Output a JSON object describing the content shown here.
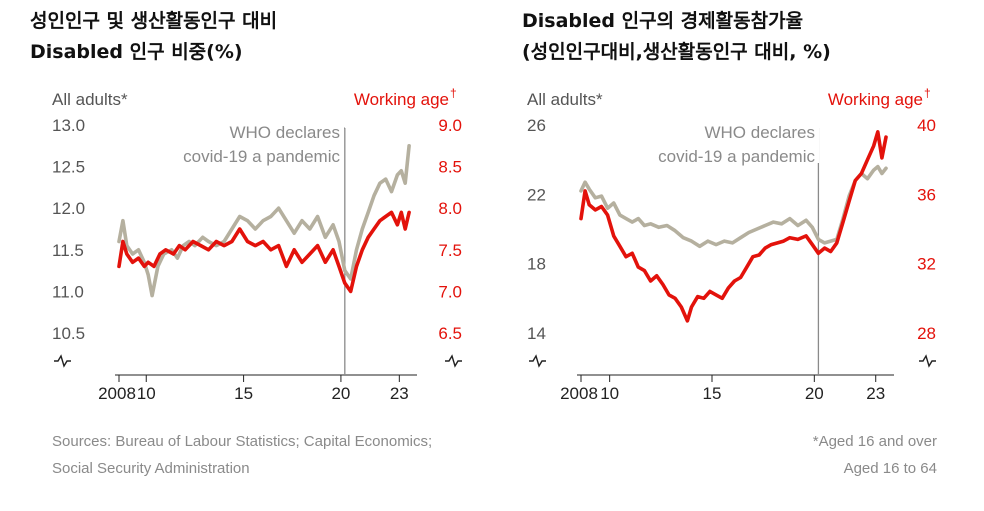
{
  "colors": {
    "all_adults": "#b5b09f",
    "working_age": "#e3120b",
    "axis_text_left": "#555555",
    "axis_text_right": "#e3120b",
    "annotation": "#8a8a8a"
  },
  "charts": [
    {
      "title_lines": [
        "성인인구 및 생산활동인구 대비",
        "Disabled 인구 비중(%)"
      ],
      "left_axis_label": "All adults*",
      "right_axis_label": "Working age",
      "right_axis_marker": "†",
      "annotation_lines": [
        "WHO declares",
        "covid-19 a pandemic"
      ]
    },
    {
      "title_lines": [
        "Disabled 인구의 경제활동참가율",
        "(성인인구대비,생산활동인구 대비, %)"
      ],
      "left_axis_label": "All adults*",
      "right_axis_label": "Working age",
      "right_axis_marker": "†",
      "annotation_lines": [
        "WHO declares",
        "covid-19 a pandemic"
      ]
    }
  ],
  "footer": {
    "sources": [
      "Sources: Bureau of Labour Statistics; Capital Economics;",
      "Social Security Administration"
    ],
    "notes": [
      "*Aged 16 and over",
      "Aged 16 to 64"
    ]
  },
  "chart_data": [
    {
      "type": "line",
      "title": "성인인구 및 생산활동인구 대비 Disabled 인구 비중(%)",
      "x_range": [
        2008.6,
        2023.6
      ],
      "x_ticks": [
        {
          "value": 2008.6,
          "label": "2008"
        },
        {
          "value": 2010,
          "label": "10"
        },
        {
          "value": 2015,
          "label": "15"
        },
        {
          "value": 2020,
          "label": "20"
        },
        {
          "value": 2023,
          "label": "23"
        }
      ],
      "y_left": {
        "label": "All adults*",
        "range": [
          10.5,
          13.0
        ],
        "ticks": [
          "10.5",
          "11.0",
          "11.5",
          "12.0",
          "12.5",
          "13.0"
        ]
      },
      "y_right": {
        "label": "Working age†",
        "range": [
          6.5,
          9.0
        ],
        "ticks": [
          "6.5",
          "7.0",
          "7.5",
          "8.0",
          "8.5",
          "9.0"
        ]
      },
      "event": {
        "x": 2020.2,
        "label": "WHO declares covid-19 a pandemic"
      },
      "series": [
        {
          "name": "All adults*",
          "axis": "left",
          "points": [
            [
              2008.6,
              11.6
            ],
            [
              2008.8,
              11.85
            ],
            [
              2009.0,
              11.55
            ],
            [
              2009.3,
              11.45
            ],
            [
              2009.6,
              11.5
            ],
            [
              2009.9,
              11.35
            ],
            [
              2010.1,
              11.2
            ],
            [
              2010.3,
              10.95
            ],
            [
              2010.6,
              11.3
            ],
            [
              2010.9,
              11.45
            ],
            [
              2011.3,
              11.5
            ],
            [
              2011.6,
              11.4
            ],
            [
              2011.9,
              11.55
            ],
            [
              2012.2,
              11.6
            ],
            [
              2012.5,
              11.55
            ],
            [
              2012.9,
              11.65
            ],
            [
              2013.2,
              11.6
            ],
            [
              2013.6,
              11.55
            ],
            [
              2014.0,
              11.6
            ],
            [
              2014.4,
              11.75
            ],
            [
              2014.8,
              11.9
            ],
            [
              2015.2,
              11.85
            ],
            [
              2015.6,
              11.75
            ],
            [
              2016.0,
              11.85
            ],
            [
              2016.4,
              11.9
            ],
            [
              2016.8,
              12.0
            ],
            [
              2017.2,
              11.85
            ],
            [
              2017.6,
              11.7
            ],
            [
              2018.0,
              11.85
            ],
            [
              2018.4,
              11.75
            ],
            [
              2018.8,
              11.9
            ],
            [
              2019.2,
              11.65
            ],
            [
              2019.6,
              11.8
            ],
            [
              2019.9,
              11.6
            ],
            [
              2020.2,
              11.25
            ],
            [
              2020.5,
              11.15
            ],
            [
              2020.8,
              11.5
            ],
            [
              2021.1,
              11.75
            ],
            [
              2021.4,
              11.95
            ],
            [
              2021.7,
              12.15
            ],
            [
              2022.0,
              12.3
            ],
            [
              2022.3,
              12.35
            ],
            [
              2022.6,
              12.2
            ],
            [
              2022.9,
              12.4
            ],
            [
              2023.1,
              12.45
            ],
            [
              2023.3,
              12.3
            ],
            [
              2023.5,
              12.75
            ]
          ]
        },
        {
          "name": "Working age†",
          "axis": "right",
          "points": [
            [
              2008.6,
              7.3
            ],
            [
              2008.8,
              7.6
            ],
            [
              2009.0,
              7.45
            ],
            [
              2009.3,
              7.35
            ],
            [
              2009.6,
              7.4
            ],
            [
              2009.9,
              7.3
            ],
            [
              2010.1,
              7.35
            ],
            [
              2010.4,
              7.3
            ],
            [
              2010.7,
              7.45
            ],
            [
              2011.0,
              7.5
            ],
            [
              2011.4,
              7.45
            ],
            [
              2011.7,
              7.55
            ],
            [
              2012.0,
              7.5
            ],
            [
              2012.4,
              7.6
            ],
            [
              2012.8,
              7.55
            ],
            [
              2013.2,
              7.5
            ],
            [
              2013.6,
              7.6
            ],
            [
              2014.0,
              7.55
            ],
            [
              2014.4,
              7.6
            ],
            [
              2014.8,
              7.75
            ],
            [
              2015.2,
              7.6
            ],
            [
              2015.6,
              7.55
            ],
            [
              2016.0,
              7.6
            ],
            [
              2016.4,
              7.5
            ],
            [
              2016.8,
              7.55
            ],
            [
              2017.2,
              7.3
            ],
            [
              2017.6,
              7.5
            ],
            [
              2018.0,
              7.35
            ],
            [
              2018.4,
              7.45
            ],
            [
              2018.8,
              7.55
            ],
            [
              2019.2,
              7.35
            ],
            [
              2019.6,
              7.5
            ],
            [
              2019.9,
              7.3
            ],
            [
              2020.2,
              7.1
            ],
            [
              2020.5,
              7.0
            ],
            [
              2020.8,
              7.3
            ],
            [
              2021.1,
              7.5
            ],
            [
              2021.4,
              7.65
            ],
            [
              2021.7,
              7.75
            ],
            [
              2022.0,
              7.85
            ],
            [
              2022.3,
              7.9
            ],
            [
              2022.6,
              7.95
            ],
            [
              2022.9,
              7.8
            ],
            [
              2023.1,
              7.95
            ],
            [
              2023.3,
              7.75
            ],
            [
              2023.5,
              7.95
            ]
          ]
        }
      ]
    },
    {
      "type": "line",
      "title": "Disabled 인구의 경제활동참가율 (성인인구대비,생산활동인구 대비, %)",
      "x_range": [
        2008.6,
        2023.6
      ],
      "x_ticks": [
        {
          "value": 2008.6,
          "label": "2008"
        },
        {
          "value": 2010,
          "label": "10"
        },
        {
          "value": 2015,
          "label": "15"
        },
        {
          "value": 2020,
          "label": "20"
        },
        {
          "value": 2023,
          "label": "23"
        }
      ],
      "y_left": {
        "label": "All adults*",
        "range": [
          14,
          26
        ],
        "ticks": [
          "14",
          "18",
          "22",
          "26"
        ]
      },
      "y_right": {
        "label": "Working age†",
        "range": [
          28,
          40
        ],
        "ticks": [
          "28",
          "32",
          "36",
          "40"
        ]
      },
      "event": {
        "x": 2020.2,
        "label": "WHO declares covid-19 a pandemic"
      },
      "series": [
        {
          "name": "All adults*",
          "axis": "left",
          "points": [
            [
              2008.6,
              22.2
            ],
            [
              2008.8,
              22.7
            ],
            [
              2009.0,
              22.3
            ],
            [
              2009.3,
              21.8
            ],
            [
              2009.6,
              21.9
            ],
            [
              2009.9,
              21.2
            ],
            [
              2010.2,
              21.5
            ],
            [
              2010.5,
              20.8
            ],
            [
              2010.8,
              20.6
            ],
            [
              2011.1,
              20.4
            ],
            [
              2011.4,
              20.6
            ],
            [
              2011.7,
              20.2
            ],
            [
              2012.0,
              20.3
            ],
            [
              2012.4,
              20.1
            ],
            [
              2012.8,
              20.2
            ],
            [
              2013.2,
              19.9
            ],
            [
              2013.6,
              19.5
            ],
            [
              2014.0,
              19.3
            ],
            [
              2014.4,
              19.0
            ],
            [
              2014.8,
              19.3
            ],
            [
              2015.2,
              19.1
            ],
            [
              2015.6,
              19.3
            ],
            [
              2016.0,
              19.2
            ],
            [
              2016.4,
              19.5
            ],
            [
              2016.8,
              19.8
            ],
            [
              2017.2,
              20.0
            ],
            [
              2017.6,
              20.2
            ],
            [
              2018.0,
              20.4
            ],
            [
              2018.4,
              20.3
            ],
            [
              2018.8,
              20.6
            ],
            [
              2019.2,
              20.2
            ],
            [
              2019.6,
              20.5
            ],
            [
              2019.9,
              20.1
            ],
            [
              2020.2,
              19.4
            ],
            [
              2020.5,
              19.2
            ],
            [
              2020.8,
              19.3
            ],
            [
              2021.1,
              19.4
            ],
            [
              2021.4,
              20.6
            ],
            [
              2021.7,
              21.9
            ],
            [
              2022.0,
              22.8
            ],
            [
              2022.3,
              23.2
            ],
            [
              2022.6,
              22.9
            ],
            [
              2022.9,
              23.4
            ],
            [
              2023.1,
              23.6
            ],
            [
              2023.3,
              23.2
            ],
            [
              2023.5,
              23.5
            ]
          ]
        },
        {
          "name": "Working age†",
          "axis": "right",
          "points": [
            [
              2008.6,
              34.6
            ],
            [
              2008.8,
              36.2
            ],
            [
              2009.0,
              35.4
            ],
            [
              2009.3,
              35.1
            ],
            [
              2009.6,
              35.3
            ],
            [
              2009.9,
              34.8
            ],
            [
              2010.2,
              33.6
            ],
            [
              2010.5,
              33.0
            ],
            [
              2010.8,
              32.4
            ],
            [
              2011.1,
              32.6
            ],
            [
              2011.4,
              31.8
            ],
            [
              2011.7,
              31.6
            ],
            [
              2012.0,
              31.0
            ],
            [
              2012.3,
              31.3
            ],
            [
              2012.6,
              30.8
            ],
            [
              2012.9,
              30.2
            ],
            [
              2013.2,
              30.0
            ],
            [
              2013.5,
              29.5
            ],
            [
              2013.8,
              28.7
            ],
            [
              2014.0,
              29.5
            ],
            [
              2014.3,
              30.1
            ],
            [
              2014.6,
              30.0
            ],
            [
              2014.9,
              30.4
            ],
            [
              2015.2,
              30.2
            ],
            [
              2015.5,
              30.0
            ],
            [
              2015.8,
              30.6
            ],
            [
              2016.1,
              31.0
            ],
            [
              2016.4,
              31.2
            ],
            [
              2016.7,
              31.8
            ],
            [
              2017.0,
              32.4
            ],
            [
              2017.3,
              32.5
            ],
            [
              2017.6,
              32.9
            ],
            [
              2017.9,
              33.1
            ],
            [
              2018.2,
              33.2
            ],
            [
              2018.5,
              33.3
            ],
            [
              2018.8,
              33.5
            ],
            [
              2019.2,
              33.4
            ],
            [
              2019.6,
              33.6
            ],
            [
              2019.9,
              33.1
            ],
            [
              2020.2,
              32.6
            ],
            [
              2020.5,
              32.9
            ],
            [
              2020.8,
              32.7
            ],
            [
              2021.1,
              33.2
            ],
            [
              2021.4,
              34.4
            ],
            [
              2021.7,
              35.6
            ],
            [
              2022.0,
              36.8
            ],
            [
              2022.3,
              37.2
            ],
            [
              2022.6,
              38.0
            ],
            [
              2022.9,
              38.8
            ],
            [
              2023.1,
              39.6
            ],
            [
              2023.3,
              38.1
            ],
            [
              2023.5,
              39.3
            ]
          ]
        }
      ]
    }
  ]
}
